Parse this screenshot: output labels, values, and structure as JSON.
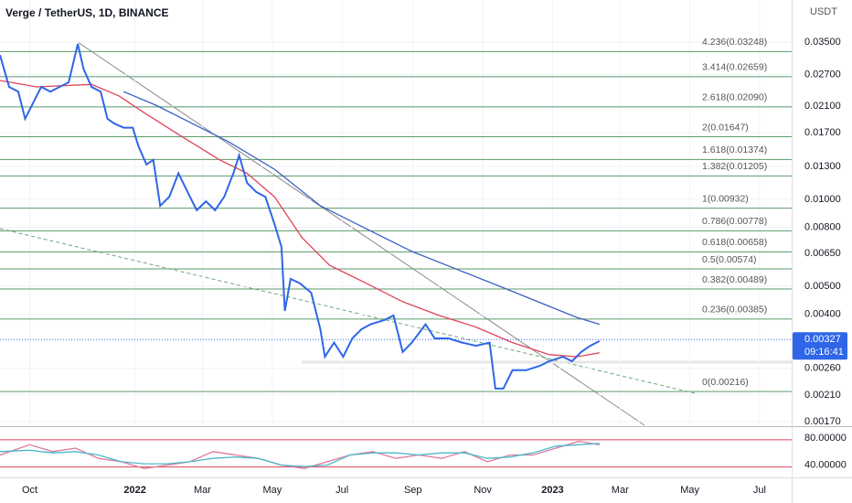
{
  "chart_data": [
    {
      "type": "line",
      "title": "Verge / TetherUS, 1D, BINANCE",
      "y_axis_label": "USDT",
      "log_scale": true,
      "grid": true,
      "xlim": [
        -26,
        666
      ],
      "ylim": [
        0.00165,
        0.049
      ],
      "xticks": [
        {
          "value": 0,
          "label": "Oct"
        },
        {
          "value": 92,
          "label": "2022"
        },
        {
          "value": 151,
          "label": "Mar"
        },
        {
          "value": 212,
          "label": "May"
        },
        {
          "value": 273,
          "label": "Jul"
        },
        {
          "value": 335,
          "label": "Sep"
        },
        {
          "value": 396,
          "label": "Nov"
        },
        {
          "value": 457,
          "label": "2023"
        },
        {
          "value": 516,
          "label": "Mar"
        },
        {
          "value": 577,
          "label": "May"
        },
        {
          "value": 638,
          "label": "Jul"
        }
      ],
      "yticks": [
        {
          "value": 0.035,
          "label": "0.03500"
        },
        {
          "value": 0.027,
          "label": "0.02700"
        },
        {
          "value": 0.021,
          "label": "0.02100"
        },
        {
          "value": 0.017,
          "label": "0.01700"
        },
        {
          "value": 0.013,
          "label": "0.01300"
        },
        {
          "value": 0.01,
          "label": "0.01000"
        },
        {
          "value": 0.008,
          "label": "0.00800"
        },
        {
          "value": 0.0065,
          "label": "0.00650"
        },
        {
          "value": 0.005,
          "label": "0.00500"
        },
        {
          "value": 0.004,
          "label": "0.00400"
        },
        {
          "value": 0.0026,
          "label": "0.00260"
        },
        {
          "value": 0.0021,
          "label": "0.00210"
        },
        {
          "value": 0.0017,
          "label": "0.00170"
        }
      ],
      "levels": [
        {
          "label": "4.236(0.03248)",
          "value": 0.03248
        },
        {
          "label": "3.414(0.02659)",
          "value": 0.02659
        },
        {
          "label": "2.618(0.02090)",
          "value": 0.0209
        },
        {
          "label": "2(0.01647)",
          "value": 0.01647
        },
        {
          "label": "1.618(0.01374)",
          "value": 0.01374
        },
        {
          "label": "1.382(0.01205)",
          "value": 0.01205
        },
        {
          "label": "1(0.00932)",
          "value": 0.00932
        },
        {
          "label": "0.786(0.00778)",
          "value": 0.00778
        },
        {
          "label": "0.618(0.00658)",
          "value": 0.00658
        },
        {
          "label": "0.5(0.00574)",
          "value": 0.00574
        },
        {
          "label": "0.382(0.00489)",
          "value": 0.00489
        },
        {
          "label": "0.236(0.00385)",
          "value": 0.00385
        },
        {
          "label": "0(0.00216)",
          "value": 0.00216
        }
      ],
      "levels_color": "#5b9a6a",
      "last_price": 0.00327,
      "countdown": "09:16:41",
      "series": [
        {
          "color": "#e0445a",
          "x": [
            -26,
            6,
            54,
            78,
            102,
            134,
            166,
            190,
            214,
            238,
            262,
            294,
            326,
            358,
            390,
            422,
            454,
            478,
            498
          ],
          "values": [
            0.0258,
            0.0245,
            0.025,
            0.0228,
            0.0197,
            0.0164,
            0.0137,
            0.0123,
            0.0102,
            0.00737,
            0.00591,
            0.00512,
            0.00442,
            0.00396,
            0.00361,
            0.00319,
            0.0029,
            0.00285,
            0.00294
          ]
        },
        {
          "color": "#3d5fc4",
          "x": [
            82,
            110,
            134,
            174,
            214,
            254,
            294,
            334,
            374,
            414,
            454,
            478,
            498
          ],
          "values": [
            0.0236,
            0.0212,
            0.019,
            0.0158,
            0.0127,
            0.0095,
            0.00791,
            0.0066,
            0.00571,
            0.00494,
            0.00426,
            0.0039,
            0.00369
          ]
        },
        {
          "color": "#2f66e8",
          "x": [
            -26,
            -18,
            -10,
            -4,
            2,
            10,
            18,
            26,
            34,
            42,
            47,
            54,
            62,
            68,
            74,
            82,
            90,
            95,
            102,
            108,
            114,
            122,
            130,
            138,
            146,
            154,
            162,
            170,
            178,
            183,
            190,
            198,
            206,
            214,
            220,
            223,
            228,
            236,
            246,
            254,
            258,
            266,
            274,
            282,
            290,
            298,
            310,
            318,
            326,
            334,
            346,
            354,
            366,
            378,
            390,
            402,
            407,
            414,
            422,
            434,
            446,
            454,
            466,
            474,
            482,
            490,
            498
          ],
          "values": [
            0.0316,
            0.0245,
            0.0236,
            0.019,
            0.0212,
            0.0245,
            0.0236,
            0.0245,
            0.0254,
            0.0345,
            0.0283,
            0.0245,
            0.0236,
            0.019,
            0.0183,
            0.0177,
            0.0177,
            0.0153,
            0.0132,
            0.0137,
            0.0095,
            0.0102,
            0.0123,
            0.0106,
            0.00917,
            0.00984,
            0.00917,
            0.0102,
            0.0123,
            0.0142,
            0.0114,
            0.0106,
            0.0102,
            0.0082,
            0.00684,
            0.00411,
            0.0053,
            0.00512,
            0.00475,
            0.00355,
            0.00285,
            0.00319,
            0.00285,
            0.0033,
            0.00355,
            0.00369,
            0.00382,
            0.00396,
            0.00296,
            0.00319,
            0.00369,
            0.0033,
            0.0033,
            0.00319,
            0.00311,
            0.00319,
            0.00221,
            0.00221,
            0.00256,
            0.00256,
            0.00265,
            0.00275,
            0.00285,
            0.00275,
            0.00296,
            0.00311,
            0.00323
          ]
        }
      ]
    },
    {
      "type": "line",
      "xlim": [
        -26,
        666
      ],
      "ylim": [
        22,
        96
      ],
      "yticks": [
        {
          "value": 80,
          "label": "80.00000"
        },
        {
          "value": 40,
          "label": "40.00000"
        }
      ],
      "series": [
        {
          "color": "#e07a9a",
          "x": [
            -26,
            0,
            20,
            40,
            60,
            80,
            100,
            120,
            140,
            160,
            180,
            200,
            220,
            240,
            260,
            280,
            300,
            320,
            340,
            360,
            380,
            400,
            420,
            440,
            460,
            480,
            498
          ],
          "values": [
            55,
            70,
            60,
            65,
            50,
            45,
            35,
            40,
            45,
            60,
            55,
            50,
            40,
            35,
            45,
            55,
            60,
            50,
            55,
            50,
            60,
            45,
            55,
            55,
            65,
            75,
            70
          ]
        },
        {
          "color": "#4cb8c8",
          "x": [
            -26,
            0,
            20,
            40,
            60,
            80,
            100,
            120,
            140,
            160,
            180,
            200,
            220,
            240,
            260,
            280,
            300,
            320,
            340,
            360,
            380,
            400,
            420,
            440,
            460,
            480,
            498
          ],
          "values": [
            60,
            62,
            58,
            60,
            55,
            45,
            42,
            42,
            45,
            50,
            52,
            50,
            40,
            38,
            40,
            55,
            58,
            58,
            55,
            58,
            58,
            50,
            52,
            58,
            68,
            70,
            72
          ]
        }
      ]
    }
  ]
}
